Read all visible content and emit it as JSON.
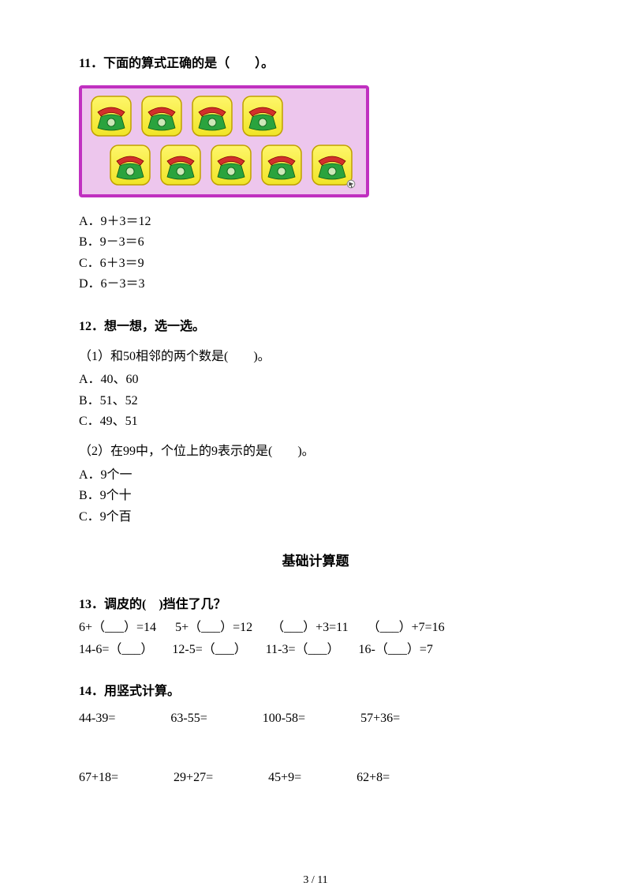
{
  "q11": {
    "title": "11．下面的算式正确的是（　　）。",
    "figure": {
      "row1_count": 4,
      "row2_count": 5,
      "item_fill": "#f0e428",
      "item_border": "#c0a000",
      "phone_body": "#2aa33e",
      "phone_handset": "#d2302b",
      "bg": "#edc6ed",
      "border": "#c030c0"
    },
    "options": [
      "A．9＋3＝12",
      "B．9－3＝6",
      "C．6＋3＝9",
      "D．6－3＝3"
    ]
  },
  "q12": {
    "title": "12．想一想，选一选。",
    "parts": [
      {
        "stem": "（1）和50相邻的两个数是(　　)。",
        "options": [
          "A．40、60",
          "B．51、52",
          "C．49、51"
        ]
      },
      {
        "stem": "（2）在99中，个位上的9表示的是(　　)。",
        "options": [
          "A．9个一",
          "B．9个十",
          "C．9个百"
        ]
      }
    ]
  },
  "section_title": "基础计算题",
  "q13": {
    "title": "13．调皮的(　)挡住了几？",
    "rows": [
      [
        "6+（___）=14",
        "5+（___）=12",
        "（___）+3=11",
        "（___）+7=16"
      ],
      [
        "14-6=（___）",
        "12-5=（___）",
        "11-3=（___）",
        "16-（___）=7"
      ]
    ]
  },
  "q14": {
    "title": "14．用竖式计算。",
    "rows": [
      [
        "44-39=",
        "63-55=",
        "100-58=",
        "57+36="
      ],
      [
        "67+18=",
        "29+27=",
        "45+9=",
        "62+8="
      ]
    ]
  },
  "page_number": "3 / 11"
}
